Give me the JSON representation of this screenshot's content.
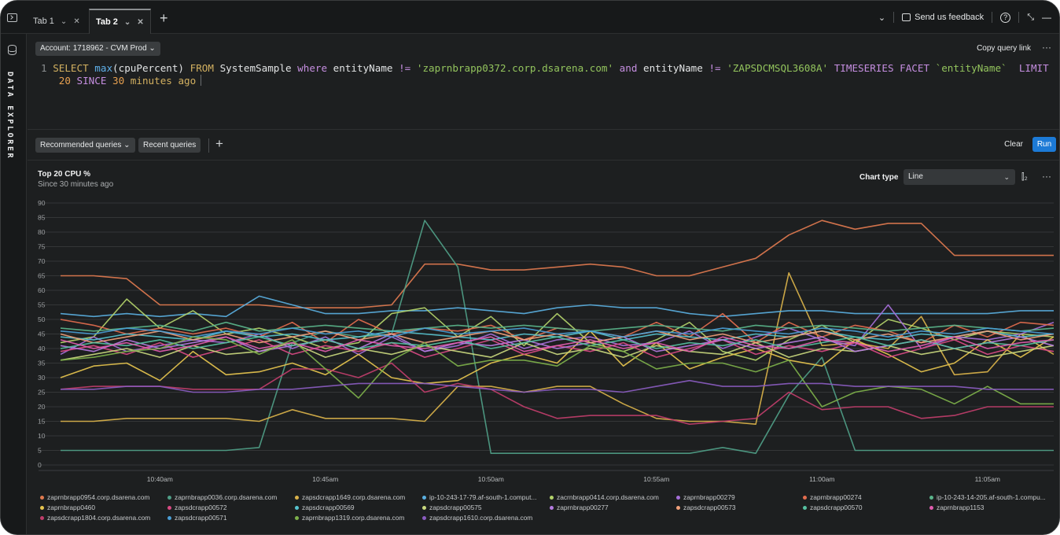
{
  "tabs": [
    {
      "label": "Tab 1",
      "active": false
    },
    {
      "label": "Tab 2",
      "active": true
    }
  ],
  "topbar": {
    "feedback": "Send us feedback",
    "help": "?"
  },
  "sidebar": {
    "label": "DATA EXPLORER"
  },
  "editor": {
    "account": "Account: 1718962 - CVM Prod",
    "copy_link": "Copy query link",
    "line_number": "1",
    "query": {
      "t1": "SELECT",
      "t2": "max",
      "t3": "(cpuPercent)",
      "t4": "FROM",
      "t5": "SystemSample",
      "t6": "where",
      "t7": "entityName",
      "t8": "!=",
      "t9": "'zaprnbrapp0372.corp.dsarena.com'",
      "t10": "and",
      "t11": "entityName",
      "t12": "!=",
      "t13": "'ZAPSDCMSQL3608A'",
      "t14": "TIMESERIES",
      "t15": "FACET",
      "t16": "`entityName`",
      "t17": "LIMIT",
      "t18": "20",
      "t19": "SINCE",
      "t20": "30",
      "t21": "minutes",
      "t22": "ago"
    }
  },
  "toolbar": {
    "recommended": "Recommended queries",
    "recent": "Recent queries",
    "clear": "Clear",
    "run": "Run"
  },
  "chart_header": {
    "title": "Top 20 CPU %",
    "subtitle": "Since 30 minutes ago",
    "chart_type_label": "Chart type",
    "chart_type_value": "Line"
  },
  "colors": {
    "run_button": "#1c7ad6",
    "background": "#1d1f20"
  },
  "chart_data": {
    "type": "line",
    "title": "Top 20 CPU %",
    "subtitle": "Since 30 minutes ago",
    "ylim": [
      0,
      90
    ],
    "yticks": [
      0,
      5,
      10,
      15,
      20,
      25,
      30,
      35,
      40,
      45,
      50,
      55,
      60,
      65,
      70,
      75,
      80,
      85,
      90
    ],
    "xlabels": [
      "10:40am",
      "10:45am",
      "10:50am",
      "10:55am",
      "11:00am",
      "11:05am"
    ],
    "x_label_index": [
      3,
      8,
      13,
      18,
      23,
      28
    ],
    "grid": true,
    "legend_position": "bottom",
    "series": [
      {
        "name": "zaprnbrapp0954.corp.dsarena.com",
        "color": "#e07a4f",
        "values": [
          65,
          65,
          64,
          55,
          55,
          55,
          55,
          54,
          54,
          54,
          55,
          69,
          69,
          67,
          67,
          68,
          69,
          68,
          65,
          65,
          68,
          71,
          79,
          84,
          81,
          83,
          83,
          72,
          72,
          72,
          72
        ]
      },
      {
        "name": "zaprnbrapp0036.corp.dsarena.com",
        "color": "#4f9e87",
        "values": [
          5,
          5,
          5,
          5,
          5,
          5,
          6,
          42,
          46,
          44,
          45,
          84,
          68,
          4,
          4,
          4,
          4,
          4,
          4,
          4,
          6,
          4,
          24,
          37,
          5,
          5,
          5,
          5,
          5,
          5,
          5
        ]
      },
      {
        "name": "zapsdcrapp1649.corp.dsarena.com",
        "color": "#d9b24a",
        "values": [
          15,
          15,
          16,
          16,
          16,
          16,
          15,
          19,
          16,
          16,
          16,
          15,
          27,
          27,
          25,
          27,
          27,
          21,
          16,
          15,
          15,
          14,
          66,
          41,
          42,
          40,
          51,
          31,
          32,
          45,
          38
        ]
      },
      {
        "name": "ip-10-243-17-79.af-south-1.comput...",
        "color": "#5aafe0",
        "values": [
          52,
          51,
          52,
          51,
          52,
          51,
          58,
          55,
          52,
          52,
          53,
          53,
          54,
          53,
          52,
          54,
          55,
          54,
          54,
          52,
          51,
          52,
          53,
          53,
          52,
          52,
          52,
          52,
          52,
          53,
          53
        ]
      },
      {
        "name": "zacrnbrapp0414.corp.dsarena.com",
        "color": "#b3d36a",
        "values": [
          42,
          44,
          57,
          47,
          53,
          45,
          47,
          44,
          40,
          42,
          52,
          54,
          44,
          51,
          41,
          52,
          42,
          39,
          43,
          49,
          39,
          36,
          43,
          48,
          42,
          50,
          47,
          43,
          46,
          45,
          44
        ]
      },
      {
        "name": "zaprnbrapp00279",
        "color": "#a56fd8",
        "values": [
          38,
          44,
          39,
          41,
          43,
          42,
          45,
          40,
          44,
          38,
          44,
          39,
          41,
          45,
          40,
          43,
          44,
          41,
          42,
          46,
          40,
          44,
          47,
          43,
          41,
          55,
          40,
          44,
          43,
          45,
          49
        ]
      },
      {
        "name": "zaprnbrapp00274",
        "color": "#e36d4e",
        "values": [
          50,
          48,
          45,
          47,
          45,
          47,
          44,
          49,
          42,
          50,
          45,
          47,
          46,
          48,
          43,
          47,
          46,
          44,
          49,
          44,
          52,
          42,
          49,
          44,
          48,
          46,
          42,
          48,
          44,
          49,
          48
        ]
      },
      {
        "name": "ip-10-243-14-205.af-south-1.compu...",
        "color": "#5ab58b",
        "values": [
          47,
          46,
          47,
          48,
          46,
          49,
          46,
          47,
          48,
          47,
          46,
          47,
          48,
          47,
          48,
          47,
          46,
          47,
          48,
          47,
          46,
          48,
          47,
          48,
          47,
          46,
          47,
          48,
          47,
          46,
          47
        ]
      },
      {
        "name": "zaprnbrapp0460",
        "color": "#e6c44e",
        "values": [
          30,
          34,
          35,
          29,
          39,
          31,
          32,
          35,
          31,
          38,
          30,
          28,
          29,
          35,
          38,
          35,
          46,
          34,
          42,
          33,
          37,
          40,
          36,
          34,
          43,
          38,
          32,
          35,
          43,
          37,
          44
        ]
      },
      {
        "name": "zapsdcrapp00572",
        "color": "#d84a83",
        "values": [
          39,
          41,
          38,
          42,
          37,
          40,
          43,
          38,
          41,
          39,
          42,
          37,
          40,
          43,
          38,
          41,
          39,
          42,
          37,
          40,
          43,
          38,
          41,
          39,
          42,
          37,
          40,
          43,
          38,
          41,
          39
        ]
      },
      {
        "name": "zapsdcrapp00569",
        "color": "#56c3cf",
        "values": [
          44,
          43,
          45,
          44,
          43,
          46,
          44,
          45,
          43,
          44,
          46,
          45,
          44,
          43,
          45,
          44,
          46,
          43,
          45,
          44,
          43,
          45,
          44,
          46,
          44,
          43,
          45,
          44,
          46,
          44,
          45
        ]
      },
      {
        "name": "zapsdcrapp00575",
        "color": "#c9d87e",
        "values": [
          36,
          38,
          40,
          37,
          41,
          38,
          39,
          42,
          37,
          40,
          38,
          41,
          39,
          37,
          42,
          38,
          40,
          37,
          41,
          39,
          38,
          42,
          37,
          40,
          39,
          41,
          38,
          40,
          37,
          39,
          41
        ]
      },
      {
        "name": "zaprnbrapp00277",
        "color": "#b57be0",
        "values": [
          41,
          39,
          43,
          40,
          42,
          44,
          39,
          41,
          43,
          40,
          45,
          39,
          42,
          41,
          43,
          40,
          42,
          44,
          39,
          41,
          43,
          40,
          42,
          44,
          39,
          41,
          43,
          40,
          42,
          44,
          41
        ]
      },
      {
        "name": "zapsdcrapp00573",
        "color": "#f0a07a",
        "values": [
          45,
          42,
          44,
          46,
          43,
          45,
          42,
          44,
          46,
          43,
          45,
          42,
          44,
          46,
          43,
          45,
          42,
          44,
          46,
          43,
          45,
          42,
          44,
          46,
          43,
          45,
          42,
          44,
          46,
          43,
          45
        ]
      },
      {
        "name": "zapsdcrapp00570",
        "color": "#55c0a0",
        "values": [
          40,
          42,
          41,
          43,
          40,
          42,
          44,
          41,
          43,
          40,
          42,
          41,
          43,
          40,
          42,
          44,
          41,
          43,
          40,
          42,
          41,
          43,
          40,
          42,
          44,
          41,
          43,
          40,
          42,
          41,
          43
        ]
      },
      {
        "name": "zaprnbrapp1153",
        "color": "#e05cae",
        "values": [
          43,
          40,
          42,
          39,
          41,
          44,
          40,
          42,
          39,
          43,
          41,
          40,
          42,
          44,
          39,
          41,
          43,
          40,
          42,
          39,
          44,
          41,
          40,
          43,
          42,
          39,
          41,
          44,
          40,
          42,
          43
        ]
      },
      {
        "name": "zapsdcrapp1804.corp.dsarena.com",
        "color": "#c03e6b",
        "values": [
          26,
          27,
          27,
          27,
          26,
          26,
          26,
          33,
          33,
          30,
          35,
          25,
          28,
          26,
          20,
          16,
          17,
          17,
          17,
          14,
          15,
          16,
          25,
          19,
          20,
          20,
          16,
          17,
          20,
          20,
          20
        ]
      },
      {
        "name": "zapsdcrapp00571",
        "color": "#4a9ed6",
        "values": [
          46,
          45,
          47,
          46,
          44,
          46,
          45,
          47,
          45,
          46,
          44,
          47,
          45,
          46,
          47,
          45,
          46,
          44,
          46,
          45,
          47,
          46,
          45,
          47,
          46,
          44,
          46,
          45,
          47,
          46,
          45
        ]
      },
      {
        "name": "zaprnbrapp1319.corp.dsarena.com",
        "color": "#7db04a",
        "values": [
          36,
          37,
          39,
          40,
          44,
          43,
          38,
          43,
          33,
          23,
          36,
          42,
          34,
          36,
          36,
          34,
          41,
          39,
          33,
          35,
          35,
          32,
          36,
          20,
          25,
          27,
          26,
          21,
          27,
          21,
          21
        ]
      },
      {
        "name": "zapsdcrapp1610.corp.dsarena.com",
        "color": "#8a5cc0",
        "values": [
          26,
          26,
          27,
          27,
          25,
          25,
          26,
          26,
          27,
          28,
          28,
          28,
          27,
          26,
          25,
          26,
          26,
          25,
          27,
          29,
          27,
          27,
          28,
          28,
          27,
          27,
          27,
          27,
          26,
          26,
          26
        ]
      }
    ]
  }
}
